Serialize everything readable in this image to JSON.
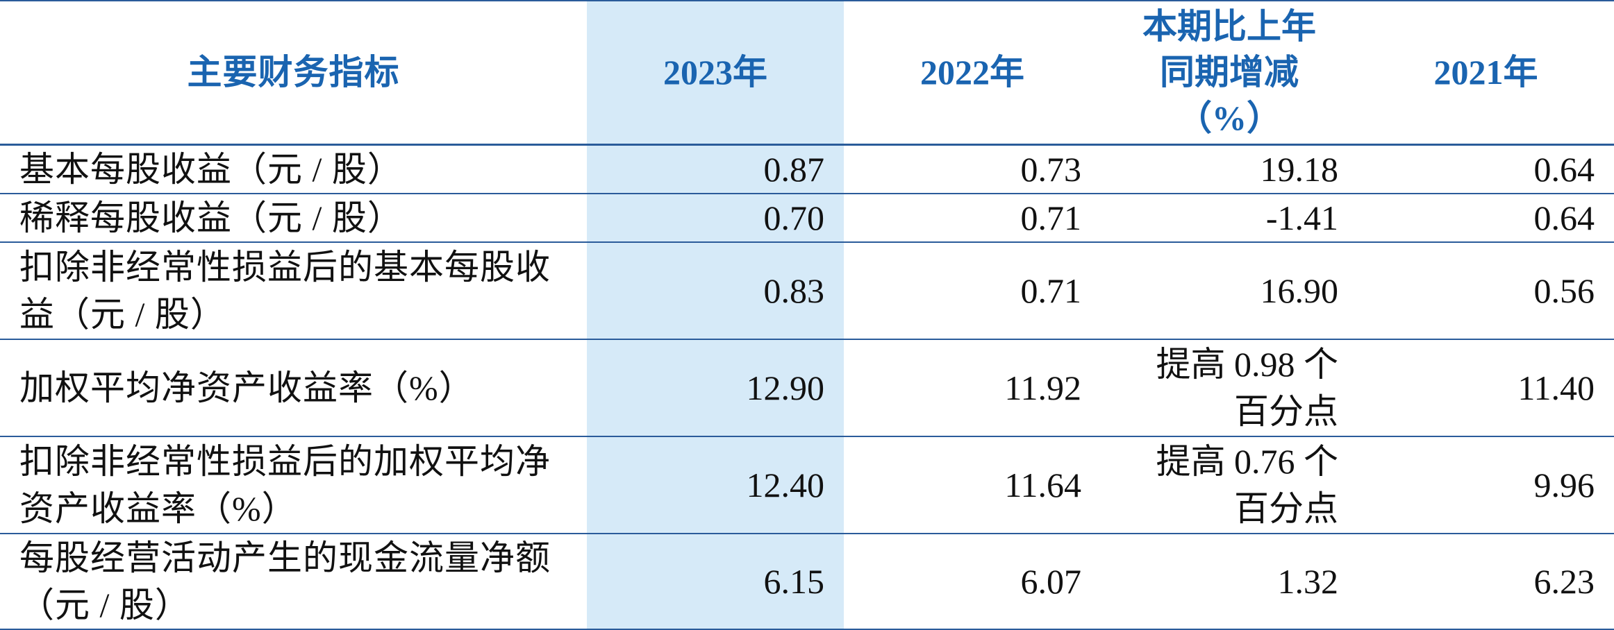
{
  "table": {
    "headers": {
      "label": "主要财务指标",
      "y2023": "2023年",
      "y2022": "2022年",
      "change_line1": "本期比上年",
      "change_line2": "同期增减",
      "change_line3": "（%）",
      "y2021": "2021年"
    },
    "rows": [
      {
        "label_line1": "基本每股收益（元 / 股）",
        "label_line2": "",
        "y2023": "0.87",
        "y2022": "0.73",
        "change_line1": "19.18",
        "change_line2": "",
        "y2021": "0.64"
      },
      {
        "label_line1": "稀释每股收益（元 / 股）",
        "label_line2": "",
        "y2023": "0.70",
        "y2022": "0.71",
        "change_line1": "-1.41",
        "change_line2": "",
        "y2021": "0.64"
      },
      {
        "label_line1": "扣除非经常性损益后的基本每股收",
        "label_line2": "益（元 / 股）",
        "y2023": "0.83",
        "y2022": "0.71",
        "change_line1": "16.90",
        "change_line2": "",
        "y2021": "0.56"
      },
      {
        "label_line1": "加权平均净资产收益率（%）",
        "label_line2": "",
        "y2023": "12.90",
        "y2022": "11.92",
        "change_line1": "提高 0.98 个",
        "change_line2": "百分点",
        "y2021": "11.40"
      },
      {
        "label_line1": "扣除非经常性损益后的加权平均净",
        "label_line2": "资产收益率（%）",
        "y2023": "12.40",
        "y2022": "11.64",
        "change_line1": "提高 0.76 个",
        "change_line2": "百分点",
        "y2021": "9.96"
      },
      {
        "label_line1": "每股经营活动产生的现金流量净额",
        "label_line2": "（元 / 股）",
        "y2023": "6.15",
        "y2022": "6.07",
        "change_line1": "1.32",
        "change_line2": "",
        "y2021": "6.23"
      }
    ]
  },
  "colors": {
    "header_text": "#1a64b0",
    "rule_line": "#2a5b9a",
    "highlight_column": "#d6eaf8",
    "body_text": "#111111"
  }
}
